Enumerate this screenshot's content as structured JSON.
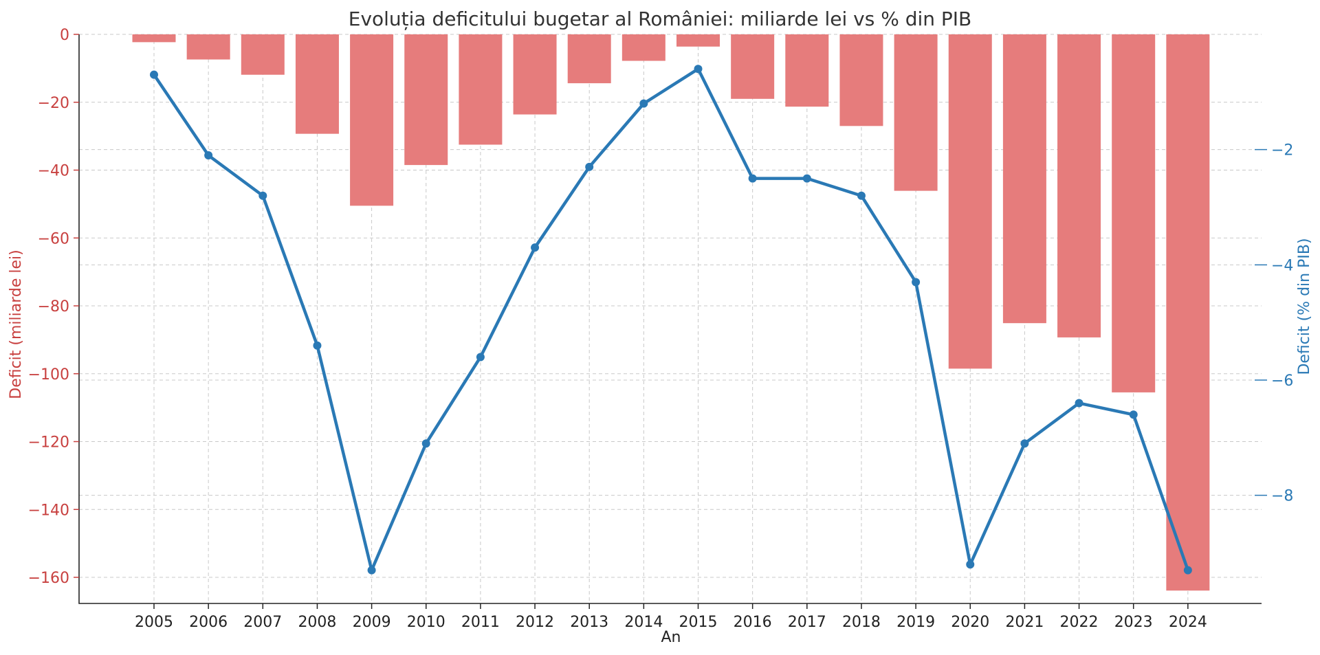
{
  "chart_data": {
    "type": "bar+line",
    "title": "Evoluția deficitului bugetar al României: miliarde lei vs % din PIB",
    "xlabel": "An",
    "ylabel_left": "Deficit (miliarde lei)",
    "ylabel_right": "Deficit (% din PIB)",
    "categories": [
      "2005",
      "2006",
      "2007",
      "2008",
      "2009",
      "2010",
      "2011",
      "2012",
      "2013",
      "2014",
      "2015",
      "2016",
      "2017",
      "2018",
      "2019",
      "2020",
      "2021",
      "2022",
      "2023",
      "2024"
    ],
    "series": [
      {
        "kind": "bar",
        "axis": "left",
        "color": "#e67c7c",
        "values": [
          -2.3,
          -7.4,
          -11.9,
          -29.3,
          -50.5,
          -38.5,
          -32.5,
          -23.6,
          -14.4,
          -7.8,
          -3.6,
          -19.0,
          -21.3,
          -27.0,
          -46.1,
          -98.5,
          -85.1,
          -89.3,
          -105.5,
          -163.9
        ]
      },
      {
        "kind": "line",
        "axis": "right",
        "color": "#2a79b5",
        "values": [
          -0.7,
          -2.1,
          -2.8,
          -5.4,
          -9.3,
          -7.1,
          -5.6,
          -3.7,
          -2.3,
          -1.2,
          -0.6,
          -2.5,
          -2.5,
          -2.8,
          -4.3,
          -9.2,
          -7.1,
          -6.4,
          -6.6,
          -9.3
        ]
      }
    ],
    "ylim_left": [
      -172,
      0
    ],
    "yticks_left": [
      "0",
      "−20",
      "−40",
      "−60",
      "−80",
      "−100",
      "−120",
      "−140",
      "−160"
    ],
    "ylim_right": [
      -9.876,
      0
    ],
    "yticks_right": [
      "−2",
      "−4",
      "−6",
      "−8"
    ],
    "grid": true,
    "legend": "none"
  }
}
